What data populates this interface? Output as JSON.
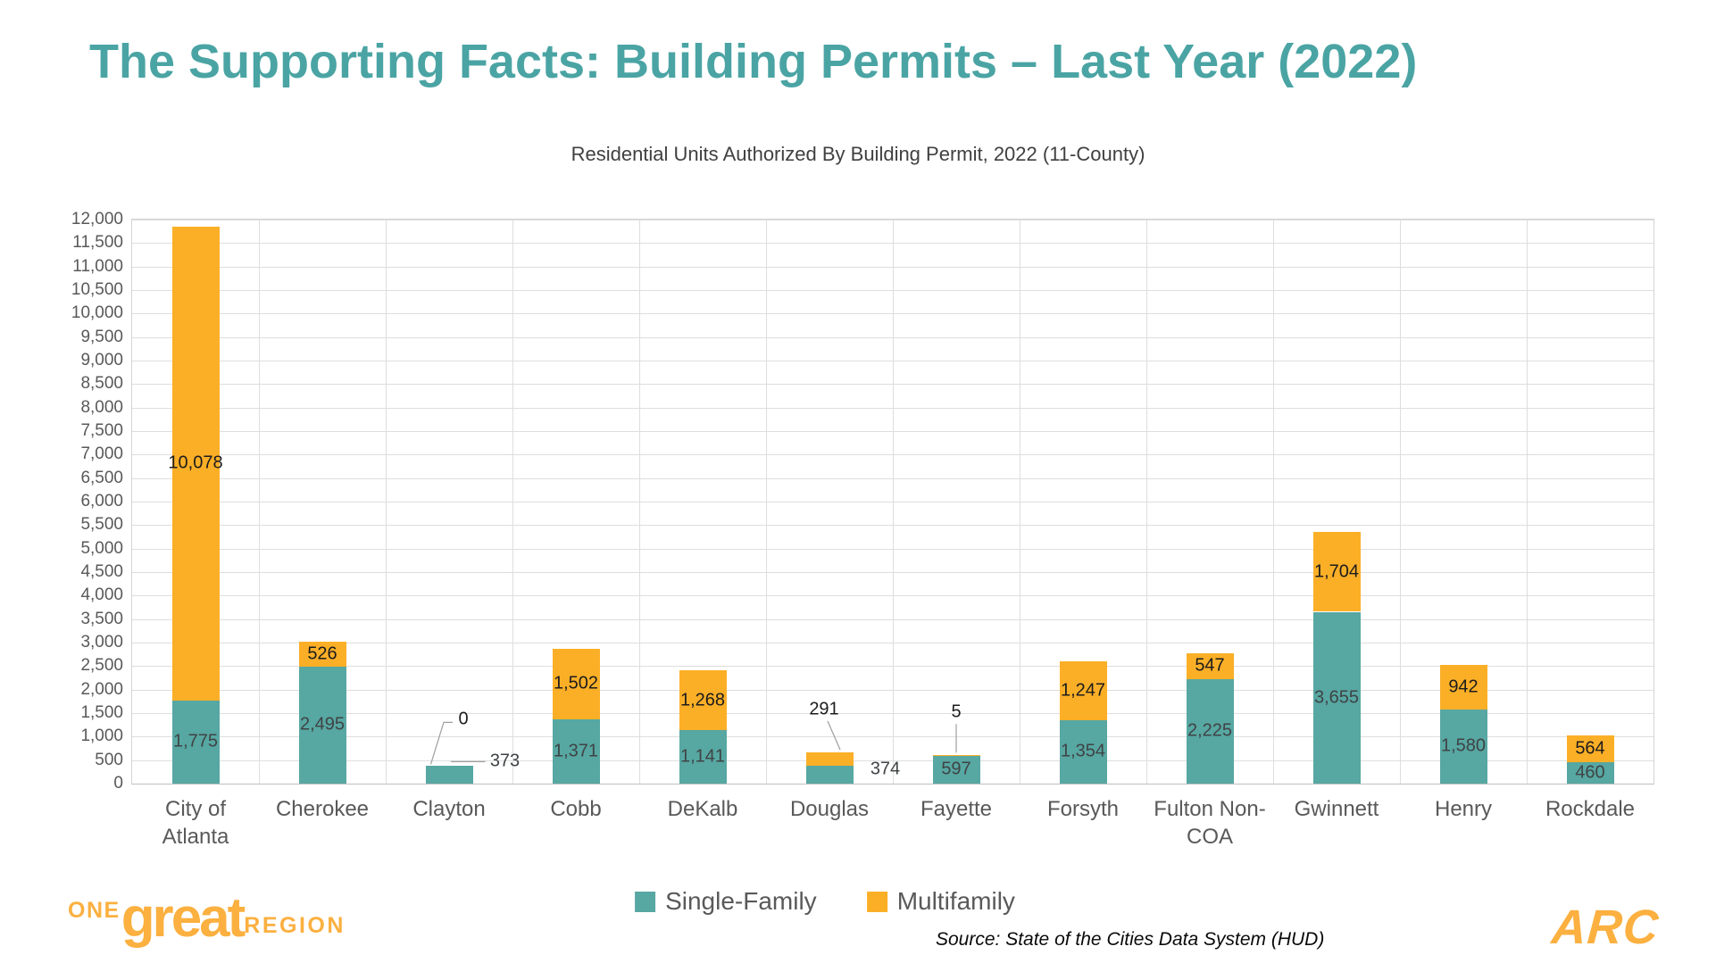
{
  "slide": {
    "title": "The Supporting Facts: Building Permits – Last Year (2022)",
    "title_color": "#4BA4A4",
    "logo_color": "#FBB040",
    "source_note": "Source: State of the Cities Data System (HUD)",
    "footer_logo_left": {
      "one": "ONE",
      "great": "great",
      "region": "REGION"
    },
    "footer_logo_right": "ARC"
  },
  "chart_data": {
    "type": "bar",
    "stacked": true,
    "title": "Residential Units Authorized By Building Permit, 2022 (11-County)",
    "categories": [
      "City of Atlanta",
      "Cherokee",
      "Clayton",
      "Cobb",
      "DeKalb",
      "Douglas",
      "Fayette",
      "Forsyth",
      "Fulton Non-COA",
      "Gwinnett",
      "Henry",
      "Rockdale"
    ],
    "series": [
      {
        "name": "Single-Family",
        "color": "#57A7A2",
        "values": [
          1775,
          2495,
          373,
          1371,
          1141,
          374,
          597,
          1354,
          2225,
          3655,
          1580,
          460
        ],
        "label_overrides": {
          "2": "right-leader",
          "5": "right"
        }
      },
      {
        "name": "Multifamily",
        "color": "#FBAF27",
        "values": [
          10078,
          526,
          0,
          1502,
          1268,
          291,
          5,
          1247,
          547,
          1704,
          942,
          564
        ],
        "label_overrides": {
          "2": "above-leader-bent",
          "5": "above-leader-diag",
          "6": "above-leader-vert"
        }
      }
    ],
    "ylim": [
      0,
      12000
    ],
    "ytick_step": 500,
    "grid": true,
    "legend_position": "bottom"
  }
}
